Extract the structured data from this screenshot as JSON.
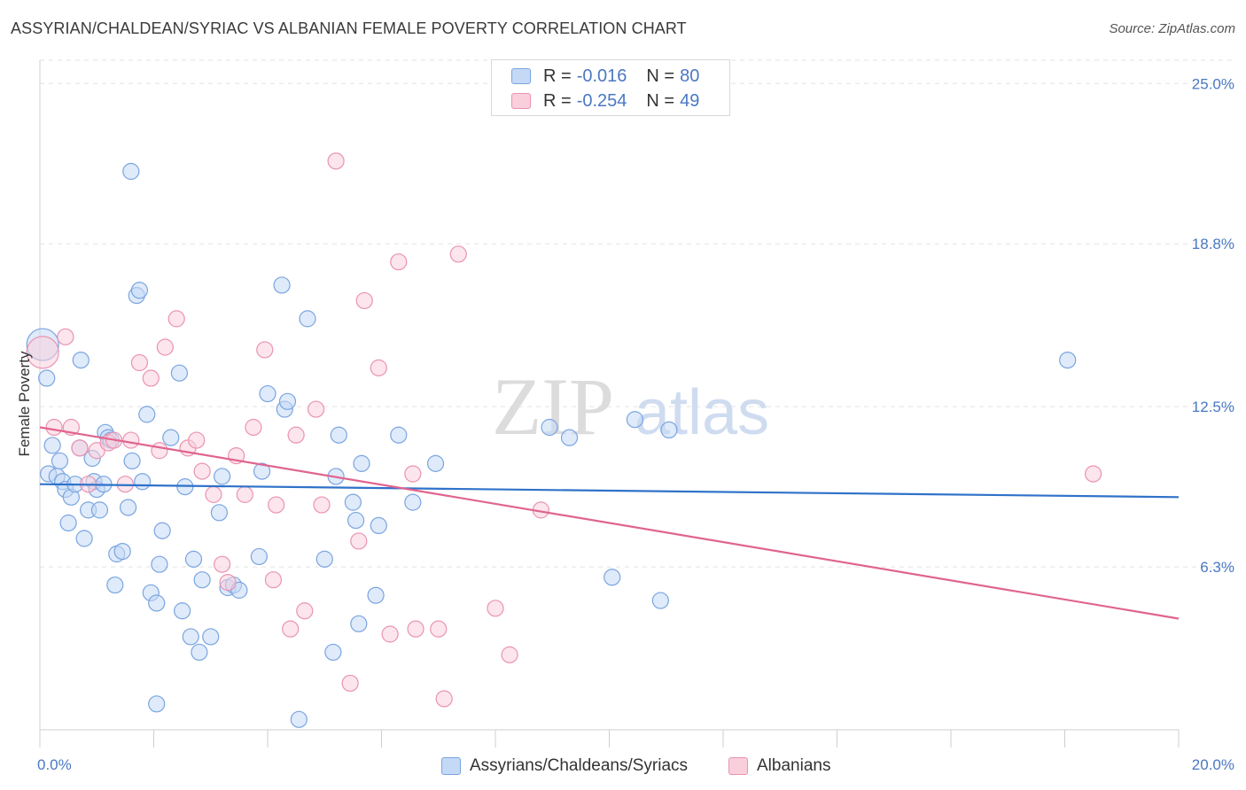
{
  "title": "ASSYRIAN/CHALDEAN/SYRIAC VS ALBANIAN FEMALE POVERTY CORRELATION CHART",
  "source": "Source: ZipAtlas.com",
  "watermark": {
    "zip": "ZIP",
    "atlas": "atlas"
  },
  "legend": {
    "r_label": "R =",
    "n_label": "N =",
    "rows": [
      {
        "r": "-0.016",
        "n": "80",
        "color": "blue"
      },
      {
        "r": "-0.254",
        "n": "49",
        "color": "pink"
      }
    ]
  },
  "bottom_legend": [
    "Assyrians/Chaldeans/Syriacs",
    "Albanians"
  ],
  "colors": {
    "blue_fill": "#c4d9f5",
    "blue_stroke": "#7aa5e0",
    "blue_line": "#2f72c9",
    "pink_fill": "#f9cfdc",
    "pink_stroke": "#ea93b2",
    "pink_line": "#e0648f",
    "tick_label": "#4a78c2",
    "grid": "#e2e2e2"
  },
  "chart_data": {
    "type": "scatter",
    "title": "ASSYRIAN/CHALDEAN/SYRIAC VS ALBANIAN FEMALE POVERTY CORRELATION CHART",
    "xlabel": "",
    "ylabel": "Female Poverty",
    "xlim": [
      0,
      20
    ],
    "ylim": [
      0,
      25.9
    ],
    "x_tick_labels": [
      {
        "x": 0,
        "label": "0.0%"
      },
      {
        "x": 20,
        "label": "20.0%"
      }
    ],
    "y_tick_labels": [
      {
        "y": 6.3,
        "label": "6.3%"
      },
      {
        "y": 12.5,
        "label": "12.5%"
      },
      {
        "y": 18.8,
        "label": "18.8%"
      },
      {
        "y": 25.0,
        "label": "25.0%"
      }
    ],
    "grid": "horizontal dashed",
    "legend_position": "top-center",
    "series": [
      {
        "name": "Assyrians/Chaldeans/Syriacs",
        "color": "#7aa5e0",
        "trend": {
          "x": [
            0,
            20
          ],
          "y": [
            9.5,
            9.0
          ]
        },
        "points": [
          {
            "x": 0.05,
            "y": 14.9,
            "big": true
          },
          {
            "x": 0.12,
            "y": 13.6
          },
          {
            "x": 0.15,
            "y": 9.9
          },
          {
            "x": 0.22,
            "y": 11.0
          },
          {
            "x": 0.3,
            "y": 9.8
          },
          {
            "x": 0.35,
            "y": 10.4
          },
          {
            "x": 0.4,
            "y": 9.6
          },
          {
            "x": 0.45,
            "y": 9.3
          },
          {
            "x": 0.5,
            "y": 8.0
          },
          {
            "x": 0.55,
            "y": 9.0
          },
          {
            "x": 0.62,
            "y": 9.5
          },
          {
            "x": 0.7,
            "y": 10.9
          },
          {
            "x": 0.72,
            "y": 14.3
          },
          {
            "x": 0.78,
            "y": 7.4
          },
          {
            "x": 0.85,
            "y": 8.5
          },
          {
            "x": 0.92,
            "y": 10.5
          },
          {
            "x": 0.95,
            "y": 9.6
          },
          {
            "x": 1.0,
            "y": 9.3
          },
          {
            "x": 1.05,
            "y": 8.5
          },
          {
            "x": 1.12,
            "y": 9.5
          },
          {
            "x": 1.15,
            "y": 11.5
          },
          {
            "x": 1.2,
            "y": 11.3
          },
          {
            "x": 1.25,
            "y": 11.2
          },
          {
            "x": 1.32,
            "y": 5.6
          },
          {
            "x": 1.35,
            "y": 6.8
          },
          {
            "x": 1.45,
            "y": 6.9
          },
          {
            "x": 1.55,
            "y": 8.6
          },
          {
            "x": 1.6,
            "y": 21.6
          },
          {
            "x": 1.62,
            "y": 10.4
          },
          {
            "x": 1.7,
            "y": 16.8
          },
          {
            "x": 1.75,
            "y": 17.0
          },
          {
            "x": 1.8,
            "y": 9.6
          },
          {
            "x": 1.88,
            "y": 12.2
          },
          {
            "x": 1.95,
            "y": 5.3
          },
          {
            "x": 2.05,
            "y": 4.9
          },
          {
            "x": 2.1,
            "y": 6.4
          },
          {
            "x": 2.15,
            "y": 7.7
          },
          {
            "x": 2.3,
            "y": 11.3
          },
          {
            "x": 2.45,
            "y": 13.8
          },
          {
            "x": 2.5,
            "y": 4.6
          },
          {
            "x": 2.55,
            "y": 9.4
          },
          {
            "x": 2.65,
            "y": 3.6
          },
          {
            "x": 2.7,
            "y": 6.6
          },
          {
            "x": 2.8,
            "y": 3.0
          },
          {
            "x": 2.85,
            "y": 5.8
          },
          {
            "x": 3.0,
            "y": 3.6
          },
          {
            "x": 3.15,
            "y": 8.4
          },
          {
            "x": 3.2,
            "y": 9.8
          },
          {
            "x": 3.3,
            "y": 5.5
          },
          {
            "x": 3.4,
            "y": 5.6
          },
          {
            "x": 3.5,
            "y": 5.4
          },
          {
            "x": 3.85,
            "y": 6.7
          },
          {
            "x": 3.9,
            "y": 10.0
          },
          {
            "x": 4.0,
            "y": 13.0
          },
          {
            "x": 4.25,
            "y": 17.2
          },
          {
            "x": 4.3,
            "y": 12.4
          },
          {
            "x": 4.35,
            "y": 12.7
          },
          {
            "x": 4.55,
            "y": 0.4
          },
          {
            "x": 4.7,
            "y": 15.9
          },
          {
            "x": 5.0,
            "y": 6.6
          },
          {
            "x": 5.15,
            "y": 3.0
          },
          {
            "x": 5.2,
            "y": 9.8
          },
          {
            "x": 5.25,
            "y": 11.4
          },
          {
            "x": 5.5,
            "y": 8.8
          },
          {
            "x": 5.55,
            "y": 8.1
          },
          {
            "x": 5.6,
            "y": 4.1
          },
          {
            "x": 5.65,
            "y": 10.3
          },
          {
            "x": 5.9,
            "y": 5.2
          },
          {
            "x": 5.95,
            "y": 7.9
          },
          {
            "x": 6.3,
            "y": 11.4
          },
          {
            "x": 6.55,
            "y": 8.8
          },
          {
            "x": 6.95,
            "y": 10.3
          },
          {
            "x": 8.95,
            "y": 11.7
          },
          {
            "x": 9.3,
            "y": 11.3
          },
          {
            "x": 10.05,
            "y": 5.9
          },
          {
            "x": 10.45,
            "y": 12.0
          },
          {
            "x": 10.9,
            "y": 5.0
          },
          {
            "x": 11.05,
            "y": 11.6
          },
          {
            "x": 18.05,
            "y": 14.3
          },
          {
            "x": 2.05,
            "y": 1.0
          }
        ]
      },
      {
        "name": "Albanians",
        "color": "#ea93b2",
        "trend": {
          "x": [
            0,
            20
          ],
          "y": [
            11.7,
            4.3
          ]
        },
        "points": [
          {
            "x": 0.05,
            "y": 14.6,
            "big": true
          },
          {
            "x": 0.25,
            "y": 11.7
          },
          {
            "x": 0.45,
            "y": 15.2
          },
          {
            "x": 0.55,
            "y": 11.7
          },
          {
            "x": 0.7,
            "y": 10.9
          },
          {
            "x": 0.85,
            "y": 9.5
          },
          {
            "x": 1.0,
            "y": 10.8
          },
          {
            "x": 1.2,
            "y": 11.1
          },
          {
            "x": 1.3,
            "y": 11.2
          },
          {
            "x": 1.5,
            "y": 9.5
          },
          {
            "x": 1.6,
            "y": 11.2
          },
          {
            "x": 1.75,
            "y": 14.2
          },
          {
            "x": 1.95,
            "y": 13.6
          },
          {
            "x": 2.1,
            "y": 10.8
          },
          {
            "x": 2.2,
            "y": 14.8
          },
          {
            "x": 2.4,
            "y": 15.9
          },
          {
            "x": 2.6,
            "y": 10.9
          },
          {
            "x": 2.75,
            "y": 11.2
          },
          {
            "x": 2.85,
            "y": 10.0
          },
          {
            "x": 3.05,
            "y": 9.1
          },
          {
            "x": 3.2,
            "y": 6.4
          },
          {
            "x": 3.3,
            "y": 5.7
          },
          {
            "x": 3.45,
            "y": 10.6
          },
          {
            "x": 3.6,
            "y": 9.1
          },
          {
            "x": 3.75,
            "y": 11.7
          },
          {
            "x": 3.95,
            "y": 14.7
          },
          {
            "x": 4.1,
            "y": 5.8
          },
          {
            "x": 4.15,
            "y": 8.7
          },
          {
            "x": 4.4,
            "y": 3.9
          },
          {
            "x": 4.5,
            "y": 11.4
          },
          {
            "x": 4.65,
            "y": 4.6
          },
          {
            "x": 4.85,
            "y": 12.4
          },
          {
            "x": 4.95,
            "y": 8.7
          },
          {
            "x": 5.2,
            "y": 22.0
          },
          {
            "x": 5.45,
            "y": 1.8
          },
          {
            "x": 5.6,
            "y": 7.3
          },
          {
            "x": 5.7,
            "y": 16.6
          },
          {
            "x": 5.95,
            "y": 14.0
          },
          {
            "x": 6.15,
            "y": 3.7
          },
          {
            "x": 6.3,
            "y": 18.1
          },
          {
            "x": 6.55,
            "y": 9.9
          },
          {
            "x": 6.6,
            "y": 3.9
          },
          {
            "x": 7.0,
            "y": 3.9
          },
          {
            "x": 7.1,
            "y": 1.2
          },
          {
            "x": 7.35,
            "y": 18.4
          },
          {
            "x": 8.0,
            "y": 4.7
          },
          {
            "x": 8.25,
            "y": 2.9
          },
          {
            "x": 8.8,
            "y": 8.5
          },
          {
            "x": 18.5,
            "y": 9.9
          }
        ]
      }
    ]
  }
}
